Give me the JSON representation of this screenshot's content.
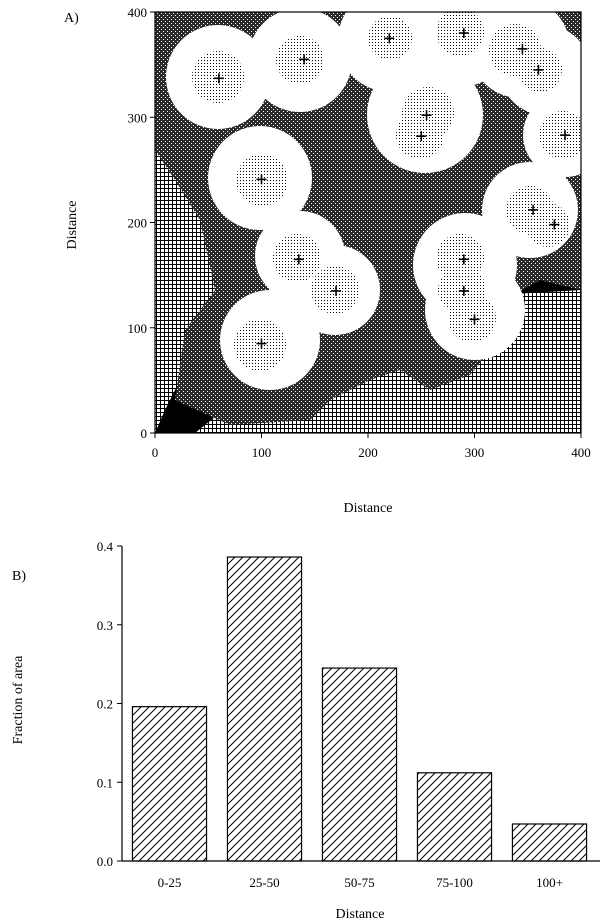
{
  "panel_a": {
    "label": "A)",
    "xlabel": "Distance",
    "ylabel": "Distance",
    "xticks": [
      "0",
      "100",
      "200",
      "300",
      "400"
    ],
    "yticks": [
      "0",
      "100",
      "200",
      "300",
      "400"
    ]
  },
  "panel_b": {
    "label": "B)",
    "xlabel": "Distance",
    "ylabel": "Fraction of area"
  },
  "chart_data": [
    {
      "type": "heatmap",
      "title": "",
      "xlabel": "Distance",
      "ylabel": "Distance",
      "xlim": [
        0,
        400
      ],
      "ylim": [
        0,
        400
      ],
      "description_points": [
        {
          "x": 60,
          "y": 337
        },
        {
          "x": 140,
          "y": 355
        },
        {
          "x": 220,
          "y": 375
        },
        {
          "x": 290,
          "y": 380
        },
        {
          "x": 345,
          "y": 365
        },
        {
          "x": 360,
          "y": 345
        },
        {
          "x": 255,
          "y": 302
        },
        {
          "x": 250,
          "y": 282
        },
        {
          "x": 385,
          "y": 283
        },
        {
          "x": 100,
          "y": 241
        },
        {
          "x": 355,
          "y": 212
        },
        {
          "x": 375,
          "y": 198
        },
        {
          "x": 135,
          "y": 165
        },
        {
          "x": 290,
          "y": 165
        },
        {
          "x": 170,
          "y": 135
        },
        {
          "x": 290,
          "y": 135
        },
        {
          "x": 300,
          "y": 108
        },
        {
          "x": 100,
          "y": 85
        }
      ],
      "legend": "none"
    },
    {
      "type": "bar",
      "title": "",
      "xlabel": "Distance",
      "ylabel": "Fraction of area",
      "categories": [
        "0-25",
        "25-50",
        "50-75",
        "75-100",
        "100+"
      ],
      "values": [
        0.196,
        0.386,
        0.245,
        0.112,
        0.047
      ],
      "ylim": [
        0,
        0.4
      ],
      "yticks": [
        "0.0",
        "0.1",
        "0.2",
        "0.3",
        "0.4"
      ],
      "grid": false,
      "legend": "none"
    }
  ]
}
